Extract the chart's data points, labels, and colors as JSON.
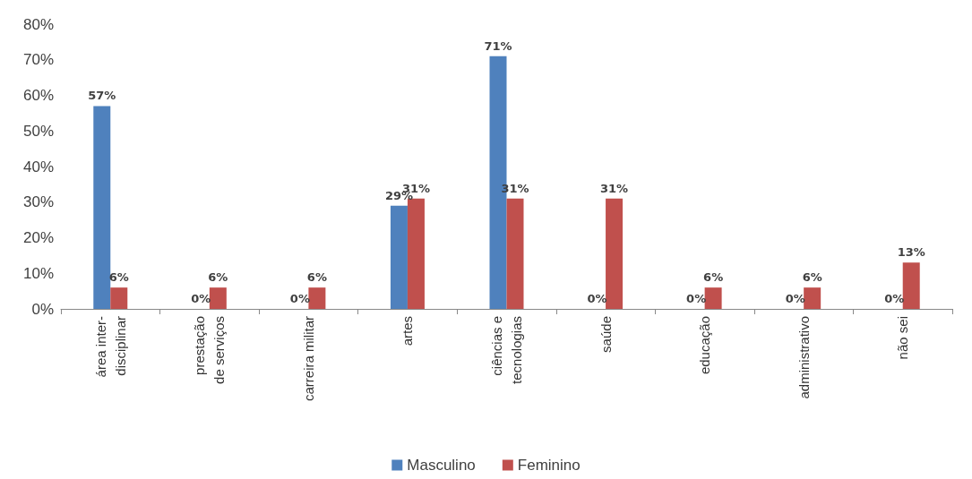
{
  "chart_data": {
    "type": "bar",
    "categories": [
      "área inter-\ndisciplinar",
      "prestação\nde serviços",
      "carreira militar",
      "artes",
      "ciências e\ntecnologias",
      "saúde",
      "educação",
      "administrativo",
      "não sei"
    ],
    "series": [
      {
        "name": "Masculino",
        "color": "#4f81bd",
        "values": [
          57,
          0,
          0,
          29,
          71,
          0,
          0,
          0,
          0
        ],
        "value_labels": [
          "57%",
          "0%",
          "0%",
          "29%",
          "71%",
          "0%",
          "0%",
          "0%",
          "0%"
        ]
      },
      {
        "name": "Feminino",
        "color": "#c0504d",
        "values": [
          6,
          6,
          6,
          31,
          31,
          31,
          6,
          6,
          13
        ],
        "value_labels": [
          "6%",
          "6%",
          "6%",
          "31%",
          "31%",
          "31%",
          "6%",
          "6%",
          "13%"
        ]
      }
    ],
    "ylim": [
      0,
      80
    ],
    "yticks": [
      {
        "value": 0,
        "label": "0%"
      },
      {
        "value": 10,
        "label": "10%"
      },
      {
        "value": 20,
        "label": "20%"
      },
      {
        "value": 30,
        "label": "30%"
      },
      {
        "value": 40,
        "label": "40%"
      },
      {
        "value": 50,
        "label": "50%"
      },
      {
        "value": 60,
        "label": "60%"
      },
      {
        "value": 70,
        "label": "70%"
      },
      {
        "value": 80,
        "label": "80%"
      }
    ],
    "grid": false,
    "legend": "bottom"
  }
}
